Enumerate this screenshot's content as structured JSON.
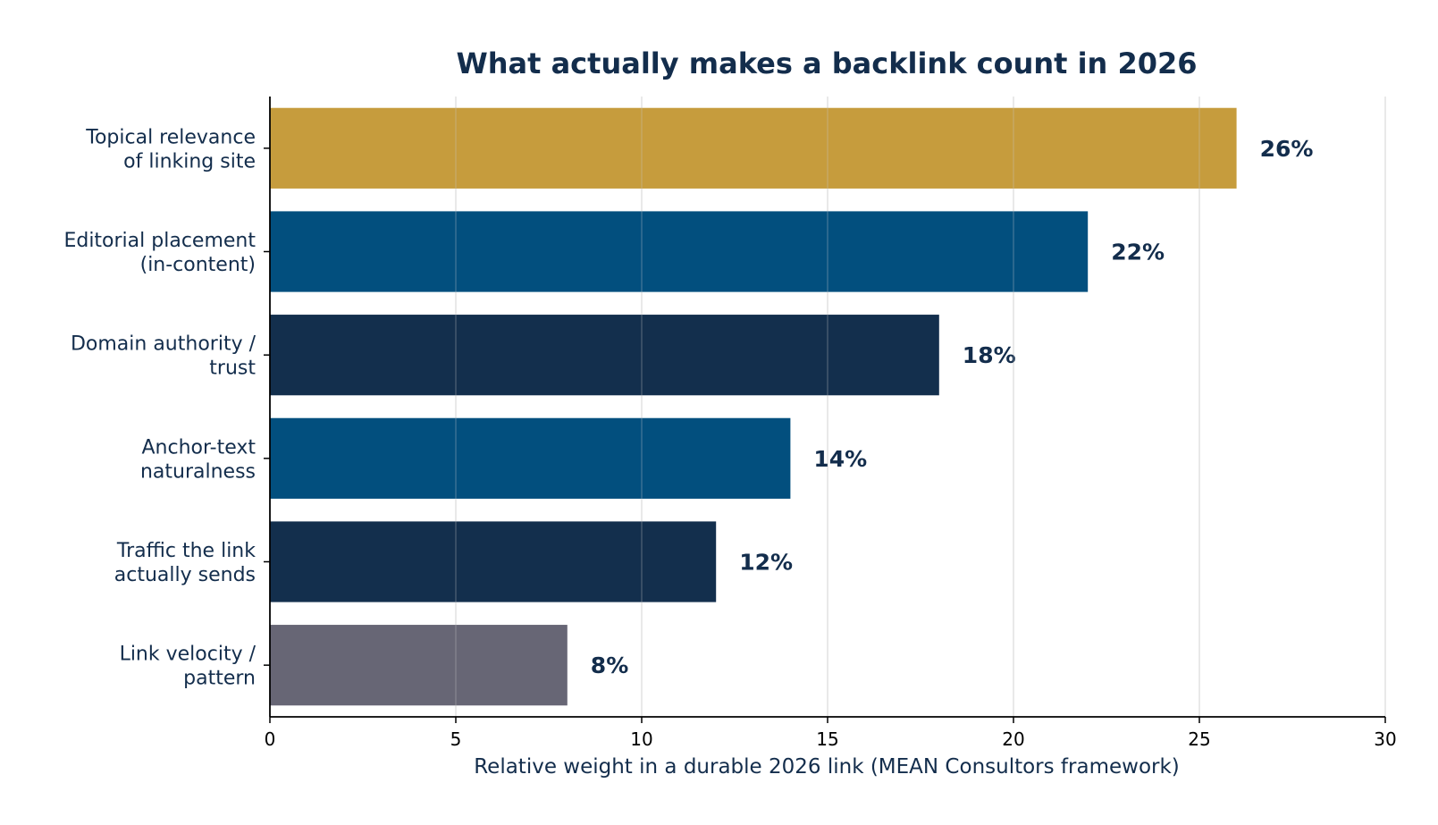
{
  "chart_data": {
    "type": "bar",
    "orientation": "horizontal",
    "title": "What actually makes a backlink count in 2026",
    "xlabel": "Relative weight in a durable 2026 link (MEAN Consultors framework)",
    "ylabel": "",
    "xlim": [
      0,
      30
    ],
    "xticks": [
      0,
      5,
      10,
      15,
      20,
      25,
      30
    ],
    "grid": "vertical",
    "categories": [
      [
        "Topical relevance",
        "of linking site"
      ],
      [
        "Editorial placement",
        "(in-content)"
      ],
      [
        "Domain authority /",
        "trust"
      ],
      [
        "Anchor-text",
        "naturalness"
      ],
      [
        "Traffic the link",
        "actually sends"
      ],
      [
        "Link velocity /",
        "pattern"
      ]
    ],
    "values": [
      26,
      22,
      18,
      14,
      12,
      8
    ],
    "data_labels": [
      "26%",
      "22%",
      "18%",
      "14%",
      "12%",
      "8%"
    ],
    "colors": [
      "#c69c3d",
      "#024f7e",
      "#132f4d",
      "#024f7e",
      "#132f4d",
      "#676675"
    ]
  }
}
